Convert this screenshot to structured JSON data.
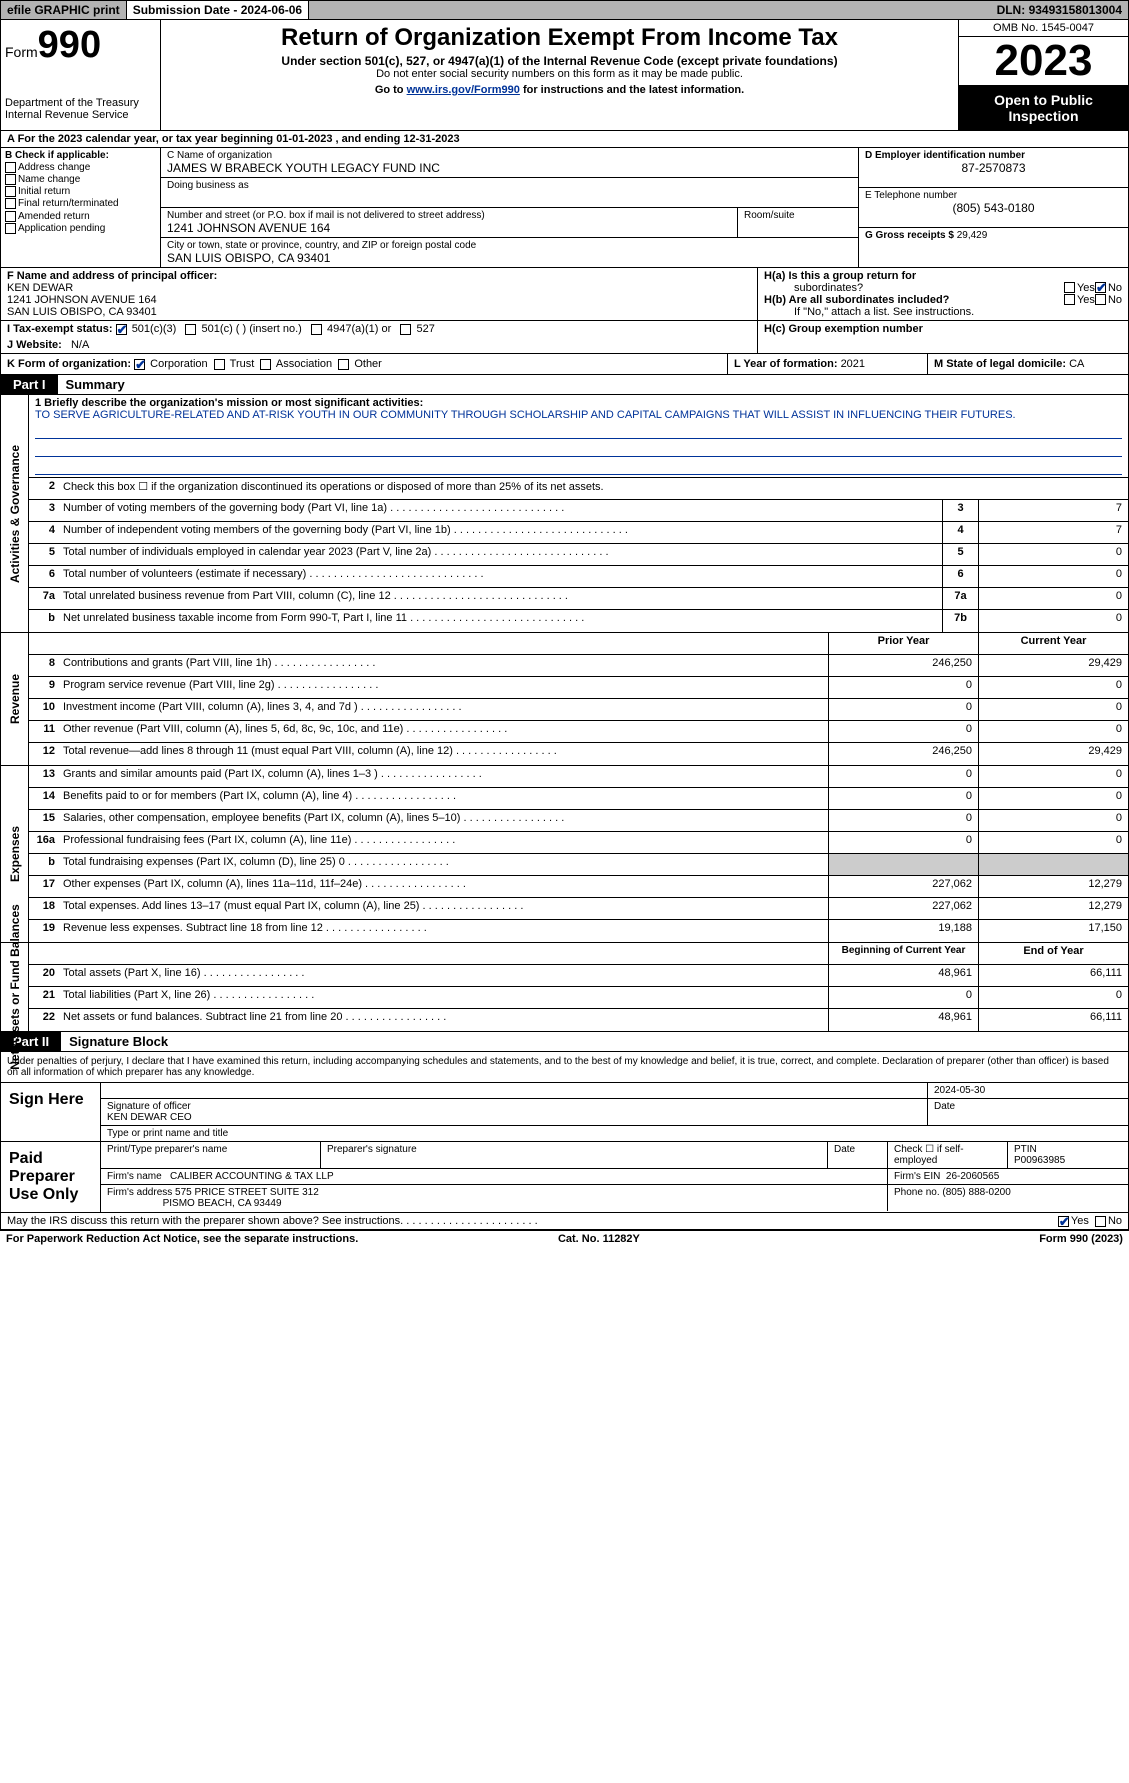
{
  "colors": {
    "link": "#003399",
    "header_bg": "#b3b3b3",
    "black": "#000000",
    "gray": "#cccccc"
  },
  "topbar": {
    "efile_prefix": "efile",
    "efile_rest": " GRAPHIC print",
    "submission_label": "Submission Date - ",
    "submission_date": "2024-06-06",
    "dln_label": "DLN: ",
    "dln": "93493158013004"
  },
  "header": {
    "form_prefix": "Form",
    "form_num": "990",
    "dept": "Department of the Treasury\nInternal Revenue Service",
    "title": "Return of Organization Exempt From Income Tax",
    "sub1": "Under section 501(c), 527, or 4947(a)(1) of the Internal Revenue Code (except private foundations)",
    "sub2": "Do not enter social security numbers on this form as it may be made public.",
    "sub3_pre": "Go to ",
    "sub3_link": "www.irs.gov/Form990",
    "sub3_post": " for instructions and the latest information.",
    "omb": "OMB No. 1545-0047",
    "year": "2023",
    "open": "Open to Public Inspection"
  },
  "lineA": "A  For the 2023 calendar year, or tax year beginning 01-01-2023    , and ending 12-31-2023",
  "boxB": {
    "hdr": "B Check if applicable:",
    "opts": [
      "Address change",
      "Name change",
      "Initial return",
      "Final return/terminated",
      "Amended return",
      "Application pending"
    ]
  },
  "boxC": {
    "name_lbl": "C Name of organization",
    "name": "JAMES W BRABECK YOUTH LEGACY FUND INC",
    "dba_lbl": "Doing business as",
    "street_lbl": "Number and street (or P.O. box if mail is not delivered to street address)",
    "street": "1241 JOHNSON AVENUE 164",
    "room_lbl": "Room/suite",
    "city_lbl": "City or town, state or province, country, and ZIP or foreign postal code",
    "city": "SAN LUIS OBISPO, CA  93401"
  },
  "boxD": {
    "lbl": "D Employer identification number",
    "val": "87-2570873"
  },
  "boxE": {
    "lbl": "E Telephone number",
    "val": "(805) 543-0180"
  },
  "boxG": {
    "lbl": "G Gross receipts $ ",
    "val": "29,429"
  },
  "boxF": {
    "lbl": "F Name and address of principal officer:",
    "name": "KEN DEWAR",
    "street": "1241 JOHNSON AVENUE 164",
    "city": "SAN LUIS OBISPO, CA  93401"
  },
  "boxH": {
    "a_lbl": "H(a)  Is this a group return for",
    "a_lbl2": "subordinates?",
    "a_no_checked": true,
    "b_lbl": "H(b)  Are all subordinates included?",
    "b_note": "If \"No,\" attach a list. See instructions.",
    "c_lbl": "H(c)  Group exemption number"
  },
  "boxI": {
    "lbl": "I    Tax-exempt status:",
    "c3_checked": true,
    "opts": [
      "501(c)(3)",
      "501(c) (  ) (insert no.)",
      "4947(a)(1) or",
      "527"
    ]
  },
  "boxJ": {
    "lbl": "J    Website:",
    "val": "N/A"
  },
  "boxK": {
    "lbl": "K Form of organization:",
    "corp_checked": true,
    "opts": [
      "Corporation",
      "Trust",
      "Association",
      "Other"
    ]
  },
  "boxL": {
    "lbl": "L Year of formation: ",
    "val": "2021"
  },
  "boxM": {
    "lbl": "M State of legal domicile: ",
    "val": "CA"
  },
  "part1": {
    "num": "Part I",
    "title": "Summary"
  },
  "gov": {
    "label": "Activities & Governance",
    "l1_lbl": "1   Briefly describe the organization's mission or most significant activities:",
    "l1_val": "TO SERVE AGRICULTURE-RELATED AND AT-RISK YOUTH IN OUR COMMUNITY THROUGH SCHOLARSHIP AND CAPITAL CAMPAIGNS THAT WILL ASSIST IN INFLUENCING THEIR FUTURES.",
    "l2": "Check this box  ☐  if the organization discontinued its operations or disposed of more than 25% of its net assets.",
    "rows": [
      {
        "n": "3",
        "d": "Number of voting members of the governing body (Part VI, line 1a)",
        "b": "3",
        "v": "7"
      },
      {
        "n": "4",
        "d": "Number of independent voting members of the governing body (Part VI, line 1b)",
        "b": "4",
        "v": "7"
      },
      {
        "n": "5",
        "d": "Total number of individuals employed in calendar year 2023 (Part V, line 2a)",
        "b": "5",
        "v": "0"
      },
      {
        "n": "6",
        "d": "Total number of volunteers (estimate if necessary)",
        "b": "6",
        "v": "0"
      },
      {
        "n": "7a",
        "d": "Total unrelated business revenue from Part VIII, column (C), line 12",
        "b": "7a",
        "v": "0"
      },
      {
        "n": "b",
        "d": "Net unrelated business taxable income from Form 990-T, Part I, line 11",
        "b": "7b",
        "v": "0"
      }
    ]
  },
  "rev": {
    "label": "Revenue",
    "hdr_prior": "Prior Year",
    "hdr_curr": "Current Year",
    "rows": [
      {
        "n": "8",
        "d": "Contributions and grants (Part VIII, line 1h)",
        "p": "246,250",
        "c": "29,429"
      },
      {
        "n": "9",
        "d": "Program service revenue (Part VIII, line 2g)",
        "p": "0",
        "c": "0"
      },
      {
        "n": "10",
        "d": "Investment income (Part VIII, column (A), lines 3, 4, and 7d )",
        "p": "0",
        "c": "0"
      },
      {
        "n": "11",
        "d": "Other revenue (Part VIII, column (A), lines 5, 6d, 8c, 9c, 10c, and 11e)",
        "p": "0",
        "c": "0"
      },
      {
        "n": "12",
        "d": "Total revenue—add lines 8 through 11 (must equal Part VIII, column (A), line 12)",
        "p": "246,250",
        "c": "29,429"
      }
    ]
  },
  "exp": {
    "label": "Expenses",
    "rows": [
      {
        "n": "13",
        "d": "Grants and similar amounts paid (Part IX, column (A), lines 1–3 )",
        "p": "0",
        "c": "0"
      },
      {
        "n": "14",
        "d": "Benefits paid to or for members (Part IX, column (A), line 4)",
        "p": "0",
        "c": "0"
      },
      {
        "n": "15",
        "d": "Salaries, other compensation, employee benefits (Part IX, column (A), lines 5–10)",
        "p": "0",
        "c": "0"
      },
      {
        "n": "16a",
        "d": "Professional fundraising fees (Part IX, column (A), line 11e)",
        "p": "0",
        "c": "0"
      },
      {
        "n": "b",
        "d": "Total fundraising expenses (Part IX, column (D), line 25) 0",
        "p": "GRAY",
        "c": "GRAY"
      },
      {
        "n": "17",
        "d": "Other expenses (Part IX, column (A), lines 11a–11d, 11f–24e)",
        "p": "227,062",
        "c": "12,279"
      },
      {
        "n": "18",
        "d": "Total expenses. Add lines 13–17 (must equal Part IX, column (A), line 25)",
        "p": "227,062",
        "c": "12,279"
      },
      {
        "n": "19",
        "d": "Revenue less expenses. Subtract line 18 from line 12",
        "p": "19,188",
        "c": "17,150"
      }
    ]
  },
  "net": {
    "label": "Net Assets or Fund Balances",
    "hdr_begin": "Beginning of Current Year",
    "hdr_end": "End of Year",
    "rows": [
      {
        "n": "20",
        "d": "Total assets (Part X, line 16)",
        "p": "48,961",
        "c": "66,111"
      },
      {
        "n": "21",
        "d": "Total liabilities (Part X, line 26)",
        "p": "0",
        "c": "0"
      },
      {
        "n": "22",
        "d": "Net assets or fund balances. Subtract line 21 from line 20",
        "p": "48,961",
        "c": "66,111"
      }
    ]
  },
  "part2": {
    "num": "Part II",
    "title": "Signature Block"
  },
  "sig": {
    "decl": "Under penalties of perjury, I declare that I have examined this return, including accompanying schedules and statements, and to the best of my knowledge and belief, it is true, correct, and complete. Declaration of preparer (other than officer) is based on all information of which preparer has any knowledge.",
    "here_lbl": "Sign Here",
    "date": "2024-05-30",
    "sig_lbl": "Signature of officer",
    "officer": "KEN DEWAR CEO",
    "type_lbl": "Type or print name and title",
    "date_lbl": "Date"
  },
  "prep": {
    "lbl": "Paid Preparer Use Only",
    "name_lbl": "Print/Type preparer's name",
    "sig_lbl": "Preparer's signature",
    "date_lbl": "Date",
    "check_lbl": "Check ☐ if self-employed",
    "ptin_lbl": "PTIN",
    "ptin": "P00963985",
    "firm_lbl": "Firm's name",
    "firm": "CALIBER ACCOUNTING & TAX LLP",
    "ein_lbl": "Firm's EIN",
    "ein": "26-2060565",
    "addr_lbl": "Firm's address",
    "addr1": "575 PRICE STREET SUITE 312",
    "addr2": "PISMO BEACH, CA  93449",
    "phone_lbl": "Phone no.",
    "phone": "(805) 888-0200",
    "discuss": "May the IRS discuss this return with the preparer shown above? See instructions.",
    "discuss_yes_checked": true
  },
  "footer": {
    "left": "For Paperwork Reduction Act Notice, see the separate instructions.",
    "mid": "Cat. No. 11282Y",
    "right": "Form 990 (2023)"
  }
}
